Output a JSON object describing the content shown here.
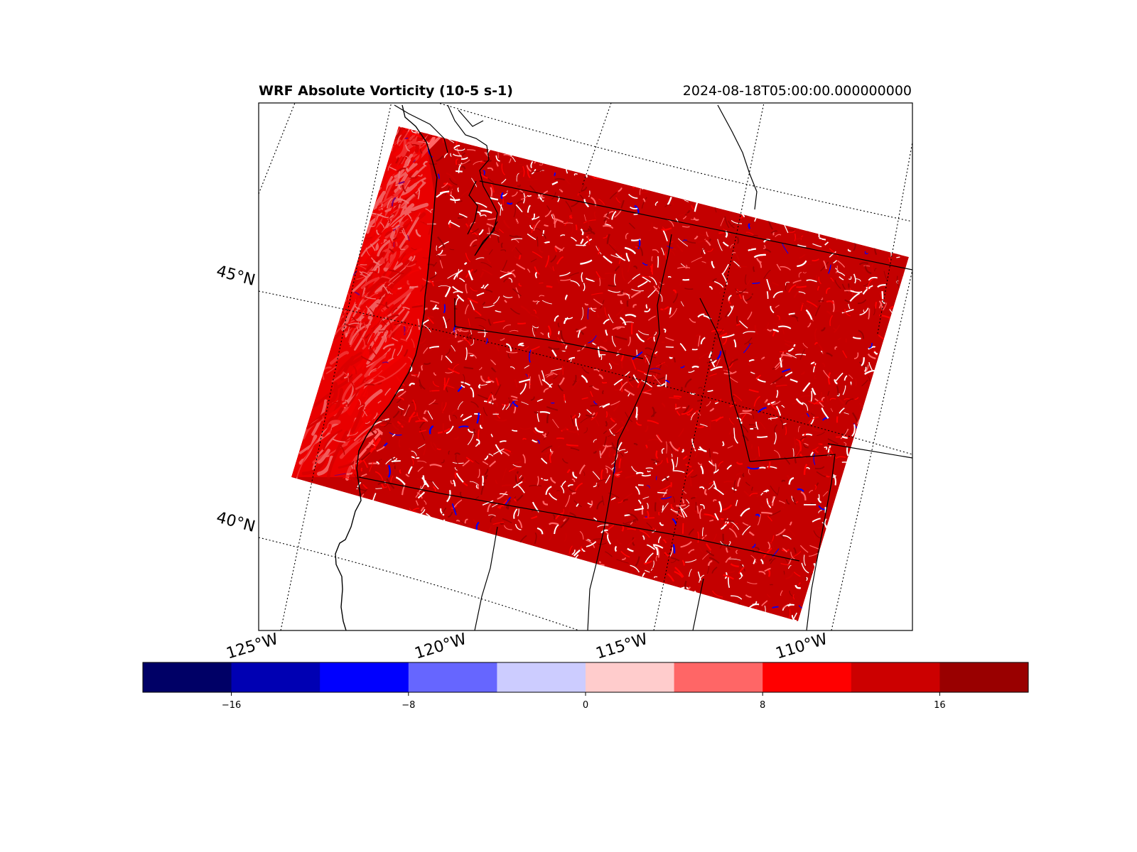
{
  "title_left": "WRF Absolute Vorticity (10-5 s-1)",
  "title_right": "2024-08-18T05:00:00.000000000",
  "lat_labels": [
    "45°N",
    "40°N"
  ],
  "lon_labels": [
    "125°W",
    "120°W",
    "115°W",
    "110°W"
  ],
  "colorbar": {
    "colors": [
      "#000066",
      "#0000b3",
      "#0000ff",
      "#6666ff",
      "#ccccff",
      "#ffcccc",
      "#ff6666",
      "#ff0000",
      "#cc0000",
      "#990000"
    ],
    "boundaries": [
      -20,
      -16,
      -12,
      -8,
      -4,
      0,
      4,
      8,
      12,
      16,
      20
    ],
    "tick_values": [
      -16,
      -8,
      0,
      8,
      16
    ],
    "tick_labels": [
      "−16",
      "−8",
      "0",
      "8",
      "16"
    ]
  },
  "field_palette": {
    "ocean": [
      "#ff0000",
      "#cc0000",
      "#ff6666",
      "#ffcccc"
    ],
    "land": [
      "#cc0000",
      "#990000",
      "#ff0000",
      "#ff6666",
      "#ffffff",
      "#0000ff"
    ]
  }
}
